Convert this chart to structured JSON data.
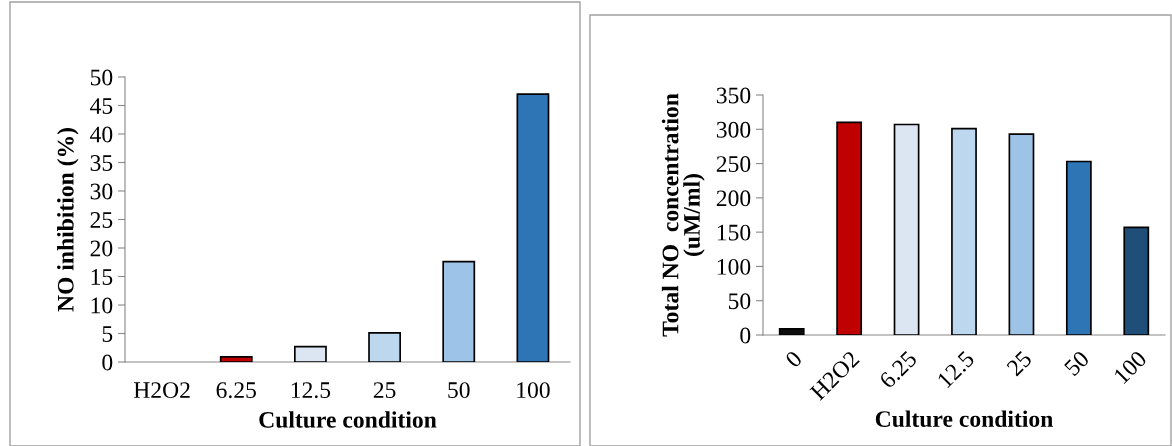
{
  "chart_data": [
    {
      "type": "bar",
      "xlabel": "Culture condition",
      "ylabel": "NO inhibition (%)",
      "categories": [
        "H2O2",
        "6.25",
        "12.5",
        "25",
        "50",
        "100"
      ],
      "values": [
        null,
        0.9,
        2.7,
        5.1,
        17.6,
        47
      ],
      "colors": [
        null,
        "#c00000",
        "#dce6f2",
        "#bdd7ee",
        "#9dc3e6",
        "#2e75b6"
      ],
      "ylim": [
        0,
        50
      ],
      "yticks": [
        0,
        5,
        10,
        15,
        20,
        25,
        30,
        35,
        40,
        45,
        50
      ],
      "grid": false,
      "legend": false
    },
    {
      "type": "bar",
      "xlabel": "Culture condition",
      "ylabel": "Total NO  concentration\n(uM/ml)",
      "categories": [
        "0",
        "H2O2",
        "6.25",
        "12.5",
        "25",
        "50",
        "100"
      ],
      "values": [
        9,
        310,
        307,
        301,
        293,
        253,
        157
      ],
      "colors": [
        "#0d0d0d",
        "#c00000",
        "#dce6f2",
        "#bdd7ee",
        "#9dc3e6",
        "#2e75b6",
        "#1f4e79"
      ],
      "ylim": [
        0,
        350
      ],
      "yticks": [
        0,
        50,
        100,
        150,
        200,
        250,
        300,
        350
      ],
      "grid": false,
      "legend": false
    }
  ]
}
